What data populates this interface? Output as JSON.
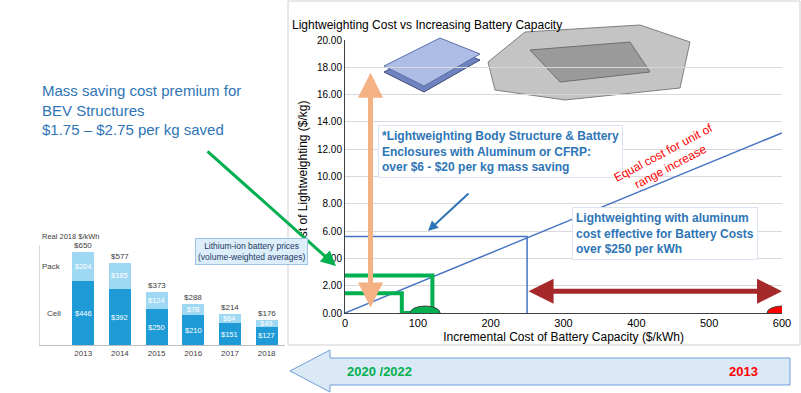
{
  "chart_data": [
    {
      "type": "line",
      "title": "Lightweighting Cost vs Increasing Battery Capacity",
      "x_label": "Incremental Cost of Battery Capacity ($/kWh)",
      "y_label": "Cost of Lightweighting ($/kg)",
      "xlim": [
        0,
        600
      ],
      "xticks": [
        0,
        100,
        200,
        300,
        400,
        500,
        600
      ],
      "ylim": [
        0,
        20
      ],
      "yticks": [
        {
          "value": 0,
          "label": "0.00"
        },
        {
          "value": 2,
          "label": "2.00"
        },
        {
          "value": 4,
          "label": "4.00"
        },
        {
          "value": 6,
          "label": "6.00"
        },
        {
          "value": 8,
          "label": "8.00"
        },
        {
          "value": 10,
          "label": "10.00"
        },
        {
          "value": 12,
          "label": "12.00"
        },
        {
          "value": 14,
          "label": "14.00"
        },
        {
          "value": 16,
          "label": "16.00"
        },
        {
          "value": 18,
          "label": "18.00"
        },
        {
          "value": 20,
          "label": "20.00"
        }
      ],
      "grid": true,
      "series": [
        {
          "type": "line",
          "line_style": "thin",
          "color": "#4472c4",
          "x": [
            0,
            600
          ],
          "values": [
            0,
            13.2
          ]
        },
        {
          "type": "line",
          "line_style": "thin",
          "color": "#4472c4",
          "x": [
            0,
            250,
            250
          ],
          "values": [
            5.6,
            5.6,
            0
          ]
        },
        {
          "type": "line",
          "line_style": "thick",
          "color": "#00b050",
          "x": [
            0,
            120,
            120
          ],
          "values": [
            2.75,
            2.75,
            0
          ]
        },
        {
          "type": "line",
          "line_style": "thick",
          "color": "#00b050",
          "x": [
            0,
            78,
            78,
            120
          ],
          "values": [
            1.45,
            1.45,
            0,
            0
          ]
        },
        {
          "type": "scatter",
          "marker": "ellipse",
          "color": "#00b050",
          "x": [
            110
          ],
          "values": [
            0
          ]
        },
        {
          "type": "scatter",
          "marker": "ellipse",
          "color": "#ff0000",
          "x": [
            600
          ],
          "values": [
            0
          ]
        },
        {
          "type": "arrow",
          "line_style": "thick",
          "color": "#f4b183",
          "x": [
            35,
            35
          ],
          "values": [
            0.3,
            17.6
          ]
        },
        {
          "type": "arrow",
          "line_style": "thick",
          "color": "#a5282b",
          "x": [
            250,
            600
          ],
          "values": [
            1.6,
            1.6
          ]
        }
      ],
      "annotations": {
        "materials_note": [
          "*Lightweighting Body Structure & Battery",
          "Enclosures with Aluminum or CFRP:",
          "over $6 - $20 per kg mass saving"
        ],
        "equal_cost_note": [
          "Equal cost for unit of",
          "range increase"
        ],
        "aluminum_note": [
          "Lightweighting with aluminum",
          "cost effective for Battery Costs",
          "over $250 per kWh"
        ]
      }
    },
    {
      "type": "bar",
      "stacked": true,
      "title": "Lithium-ion battery prices",
      "subtitle": "(volume-weighted averages)",
      "y_label": "Real 2018 $/kWh",
      "categories": [
        "2013",
        "2014",
        "2015",
        "2016",
        "2017",
        "2018"
      ],
      "ylim": [
        0,
        700
      ],
      "grid": false,
      "tick_labels": "x",
      "data_labels": true,
      "series": [
        {
          "name": "Cell",
          "color": "#1e9bd7",
          "values": [
            446,
            392,
            250,
            210,
            151,
            127
          ],
          "value_labels": [
            "$446",
            "$392",
            "$250",
            "$210",
            "$151",
            "$127"
          ]
        },
        {
          "name": "Pack",
          "color": "#9fd8f3",
          "values": [
            204,
            185,
            124,
            78,
            64,
            49
          ],
          "value_labels": [
            "$204",
            "$185",
            "$124",
            "$78",
            "$64",
            "$49"
          ]
        }
      ],
      "totals": [
        650,
        577,
        373,
        288,
        214,
        176
      ],
      "total_labels": [
        "$650",
        "$577",
        "$373",
        "$288",
        "$214",
        "$176"
      ]
    }
  ],
  "annotations": {
    "premium_note": [
      "Mass saving cost premium for",
      "BEV Structures",
      "$1.75 – $2.75 per kg saved"
    ],
    "timeline": {
      "start": "2020 /2022",
      "end": "2013"
    }
  }
}
